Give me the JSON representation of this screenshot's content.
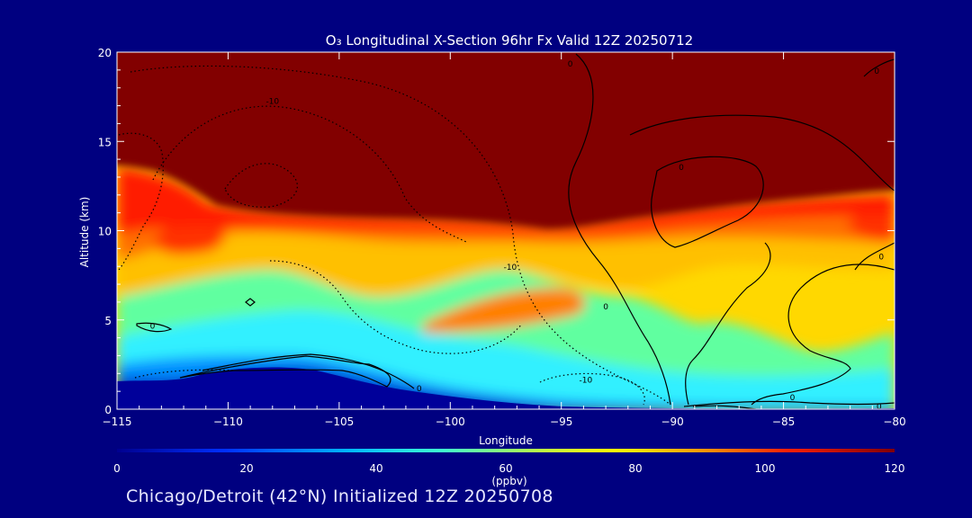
{
  "title": "O₃ Longitudinal X-Section 96hr  Fx Valid 12Z 20250712",
  "footer": "Chicago/Detroit (42°N) Initialized 12Z 20250708",
  "colors": {
    "background": "#000080",
    "text": "#ffffff",
    "contour": "#000000"
  },
  "chart_data": {
    "type": "heatmap",
    "title": "O₃ Longitudinal X-Section 96hr  Fx Valid 12Z 20250712",
    "xlabel": "Longitude",
    "ylabel": "Altitude (km)",
    "xlim": [
      -115,
      -80
    ],
    "ylim": [
      0,
      20
    ],
    "x_ticks": [
      -115,
      -110,
      -105,
      -100,
      -95,
      -90,
      -85,
      -80
    ],
    "x_tick_labels": [
      "−115",
      "−110",
      "−105",
      "−100",
      "−95",
      "−90",
      "−85",
      "−80"
    ],
    "y_ticks": [
      0,
      5,
      10,
      15,
      20
    ],
    "y_tick_labels": [
      "0",
      "5",
      "10",
      "15",
      "20"
    ],
    "colorbar": {
      "label": "(ppbv)",
      "range": [
        0,
        120
      ],
      "ticks": [
        0,
        20,
        40,
        60,
        80,
        100,
        120
      ],
      "tick_labels": [
        "0",
        "20",
        "40",
        "60",
        "80",
        "100",
        "120"
      ],
      "colormap": [
        "#00008f",
        "#0060ff",
        "#00e0ff",
        "#5fffa0",
        "#ffff00",
        "#ff8000",
        "#ff0000",
        "#800000"
      ]
    },
    "ozone_field": {
      "description_units": "ppbv",
      "tropopause_altitude_km": [
        {
          "lon": -115,
          "alt": 13.5
        },
        {
          "lon": -112,
          "alt": 13.0
        },
        {
          "lon": -110,
          "alt": 11.0
        },
        {
          "lon": -105,
          "alt": 11.0
        },
        {
          "lon": -100,
          "alt": 10.8
        },
        {
          "lon": -95,
          "alt": 10.0
        },
        {
          "lon": -90,
          "alt": 10.8
        },
        {
          "lon": -85,
          "alt": 11.5
        },
        {
          "lon": -80,
          "alt": 12.5
        }
      ],
      "surface_low_ozone_top_km": [
        {
          "lon": -115,
          "alt": 1.6
        },
        {
          "lon": -110,
          "alt": 2.0
        },
        {
          "lon": -105,
          "alt": 2.0
        },
        {
          "lon": -100,
          "alt": 0.7
        },
        {
          "lon": -95,
          "alt": 0.3
        },
        {
          "lon": -90,
          "alt": 0.2
        },
        {
          "lon": -85,
          "alt": 0.1
        },
        {
          "lon": -80,
          "alt": 0.1
        }
      ]
    },
    "contour_labels": [
      {
        "text": "-10",
        "lon": -108,
        "alt": 17.3
      },
      {
        "text": "0",
        "lon": -94.6,
        "alt": 19.4
      },
      {
        "text": "0",
        "lon": -89.6,
        "alt": 13.6
      },
      {
        "text": "0",
        "lon": -80.8,
        "alt": 19.0
      },
      {
        "text": "-10",
        "lon": -97.3,
        "alt": 8.0
      },
      {
        "text": "0",
        "lon": -93.0,
        "alt": 5.8
      },
      {
        "text": "0",
        "lon": -113.4,
        "alt": 4.7
      },
      {
        "text": "-10",
        "lon": -93.9,
        "alt": 1.7
      },
      {
        "text": "0",
        "lon": -101.4,
        "alt": 1.2
      },
      {
        "text": "0",
        "lon": -84.6,
        "alt": 0.7
      },
      {
        "text": "0",
        "lon": -80.7,
        "alt": 0.2
      },
      {
        "text": "0",
        "lon": -80.6,
        "alt": 8.6
      }
    ]
  }
}
